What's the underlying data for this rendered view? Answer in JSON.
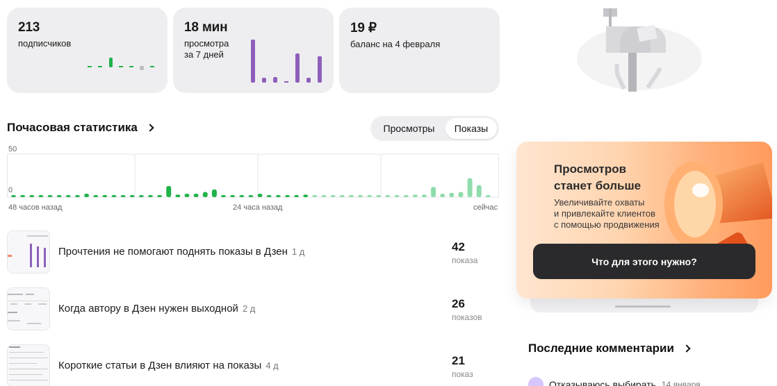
{
  "stats": [
    {
      "value": "213",
      "label": "подписчиков"
    },
    {
      "value": "18 мин",
      "label": "просмотра\nза 7 дней"
    },
    {
      "value": "19 ₽",
      "label": "баланс на 4 февраля"
    }
  ],
  "hourly": {
    "title": "Почасовая статистика",
    "toggle": {
      "views": "Просмотры",
      "impressions": "Показы",
      "active": "impressions"
    },
    "ymax_label": "50",
    "ymin_label": "0",
    "x_labels": [
      "48 часов назад",
      "24 часа назад",
      "сейчас"
    ]
  },
  "chart_data": {
    "type": "bar",
    "ylim": [
      0,
      50
    ],
    "ytick_labels": [
      "50",
      "0"
    ],
    "xtick_labels": [
      "48 часов назад",
      "24 часа назад",
      "сейчас"
    ],
    "values": [
      1,
      2,
      2,
      2,
      2,
      2,
      2,
      2,
      4,
      2,
      2,
      2,
      2,
      2,
      2,
      2,
      2,
      13,
      3,
      4,
      4,
      6,
      9,
      2,
      2,
      2,
      2,
      4,
      2,
      2,
      2,
      2,
      3,
      2,
      2,
      2,
      2,
      2,
      2,
      2,
      2,
      2,
      2,
      2,
      3,
      3,
      12,
      4,
      5,
      6,
      22,
      14,
      2
    ],
    "colors": {
      "past": "#21b24a",
      "recent": "#8fdcab"
    },
    "recent_from_index": 33
  },
  "posts": [
    {
      "title": "Прочтения не помогают поднять показы в Дзен",
      "age": "1 д",
      "count": "42",
      "unit": "показа"
    },
    {
      "title": "Когда автору в Дзен нужен выходной",
      "age": "2 д",
      "count": "26",
      "unit": "показов"
    },
    {
      "title": "Короткие статьи в Дзен влияют на показы",
      "age": "4 д",
      "count": "21",
      "unit": "показ"
    }
  ],
  "promo": {
    "heading": "Просмотров\nстанет больше",
    "text": "Увеличивайте охваты\nи привлекайте клиентов\nс помощью продвижения",
    "button": "Что для этого нужно?"
  },
  "comments": {
    "title": "Последние комментарии",
    "first": {
      "text": "Отказываюсь выбирать",
      "date": "14 января"
    }
  },
  "colors": {
    "purple": "#8d5fba",
    "green": "#21b24a",
    "card_bg": "#eeeef0"
  }
}
